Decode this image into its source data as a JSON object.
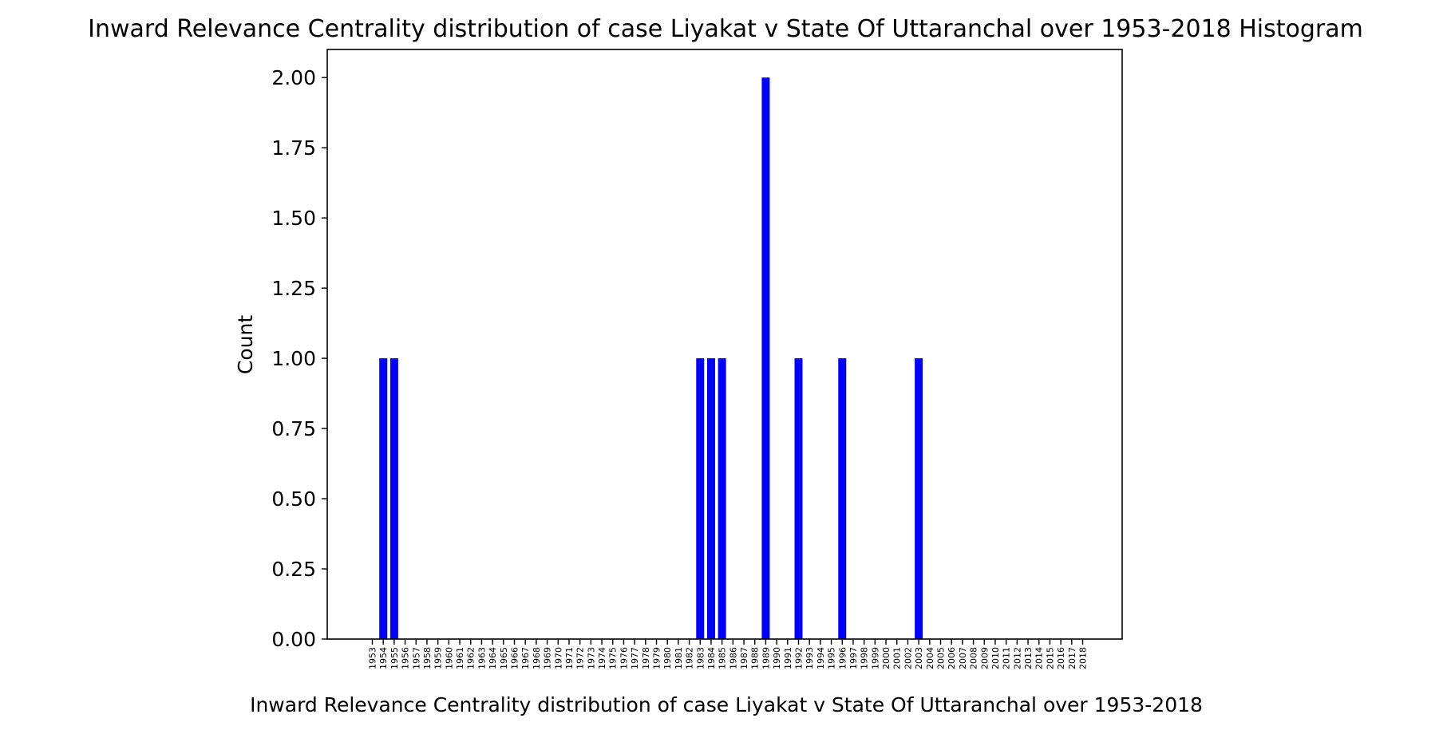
{
  "chart_data": {
    "type": "bar",
    "title": "Inward Relevance Centrality distribution of case Liyakat v State Of Uttaranchal over 1953-2018 Histogram",
    "xlabel": "Inward Relevance Centrality distribution of case Liyakat v State Of Uttaranchal over 1953-2018",
    "ylabel": "Count",
    "ylim": [
      0,
      2.1
    ],
    "yticks": [
      "0.00",
      "0.25",
      "0.50",
      "0.75",
      "1.00",
      "1.25",
      "1.50",
      "1.75",
      "2.00"
    ],
    "categories": [
      "1953",
      "1954",
      "1955",
      "1956",
      "1957",
      "1958",
      "1959",
      "1960",
      "1961",
      "1962",
      "1963",
      "1964",
      "1965",
      "1966",
      "1967",
      "1968",
      "1969",
      "1970",
      "1971",
      "1972",
      "1973",
      "1974",
      "1975",
      "1976",
      "1977",
      "1978",
      "1979",
      "1980",
      "1981",
      "1982",
      "1983",
      "1984",
      "1985",
      "1986",
      "1987",
      "1988",
      "1989",
      "1990",
      "1991",
      "1992",
      "1993",
      "1994",
      "1995",
      "1996",
      "1997",
      "1998",
      "1999",
      "2000",
      "2001",
      "2002",
      "2003",
      "2004",
      "2005",
      "2006",
      "2007",
      "2008",
      "2009",
      "2010",
      "2011",
      "2012",
      "2013",
      "2014",
      "2015",
      "2016",
      "2017",
      "2018"
    ],
    "values": [
      0,
      1,
      1,
      0,
      0,
      0,
      0,
      0,
      0,
      0,
      0,
      0,
      0,
      0,
      0,
      0,
      0,
      0,
      0,
      0,
      0,
      0,
      0,
      0,
      0,
      0,
      0,
      0,
      0,
      0,
      1,
      1,
      1,
      0,
      0,
      0,
      2,
      0,
      0,
      1,
      0,
      0,
      0,
      1,
      0,
      0,
      0,
      0,
      0,
      0,
      1,
      0,
      0,
      0,
      0,
      0,
      0,
      0,
      0,
      0,
      0,
      0,
      0,
      0,
      0,
      0
    ],
    "bar_color": "#0000ff",
    "grid": false,
    "legend": "none"
  }
}
